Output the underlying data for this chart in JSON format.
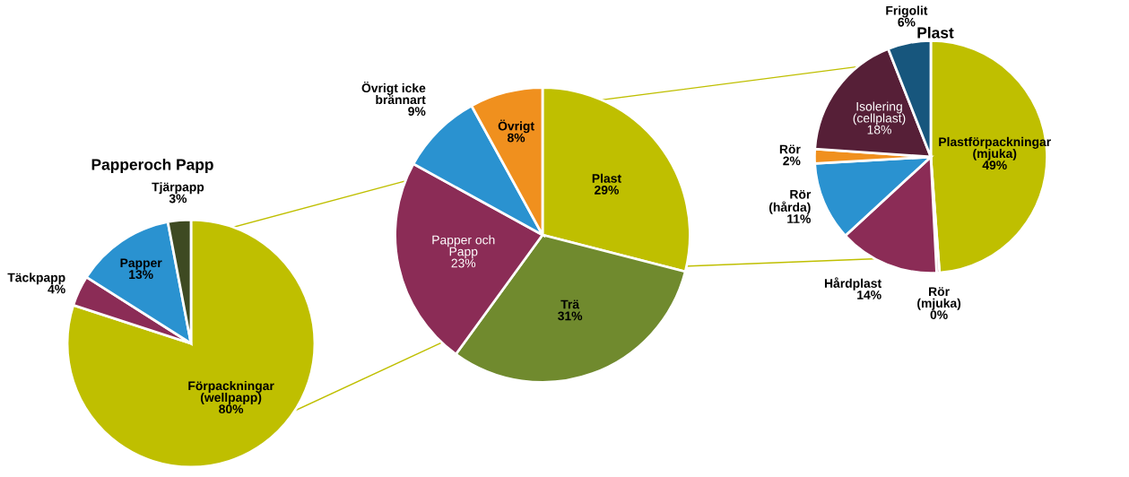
{
  "chart_data": [
    {
      "type": "pie",
      "title": "Papperoch Papp",
      "categories": [
        "Förpackningar\n(wellpapp)",
        "Täckpapp",
        "Papper",
        "Tjärpapp"
      ],
      "values": [
        80,
        4,
        13,
        3
      ],
      "value_labels": [
        "80%",
        "4%",
        "13%",
        "3%"
      ],
      "colors": [
        "#bfbf00",
        "#8b2c56",
        "#2a92d0",
        "#3e4a22"
      ]
    },
    {
      "type": "pie",
      "categories": [
        "Plast",
        "Trä",
        "Papper och\nPapp",
        "Övrigt icke\nbrännart",
        "Övrigt"
      ],
      "values": [
        29,
        31,
        23,
        9,
        8
      ],
      "value_labels": [
        "29%",
        "31%",
        "23%",
        "9%",
        "8%"
      ],
      "colors": [
        "#bfbf00",
        "#708a2e",
        "#8b2c56",
        "#2a92d0",
        "#f0901e"
      ]
    },
    {
      "type": "pie",
      "title": "Plast",
      "categories": [
        "Plastförpackningar\n(mjuka)",
        "Rör\n(mjuka)",
        "Hårdplast",
        "Rör\n(hårda)",
        "Rör",
        "Isolering\n(cellplast)",
        "Frigolit"
      ],
      "values": [
        49,
        0.4,
        14,
        11,
        2,
        18,
        6
      ],
      "value_labels": [
        "49%",
        "0%",
        "14%",
        "11%",
        "2%",
        "18%",
        "6%"
      ],
      "colors": [
        "#bfbf00",
        "#8b2c56",
        "#8b2c56",
        "#2a92d0",
        "#f0901e",
        "#561f37",
        "#17567d"
      ]
    }
  ]
}
